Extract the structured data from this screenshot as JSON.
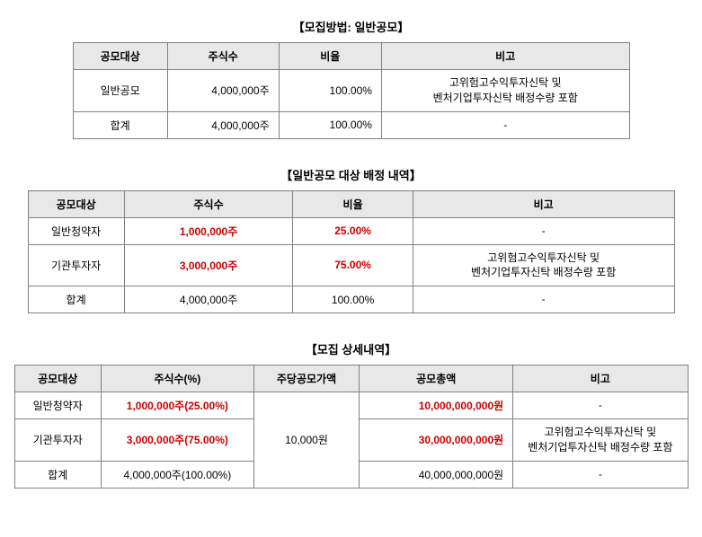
{
  "section1": {
    "title": "【모집방법: 일반공모】",
    "headers": [
      "공모대상",
      "주식수",
      "비율",
      "비고"
    ],
    "rows": [
      {
        "target": "일반공모",
        "shares": "4,000,000주",
        "ratio": "100.00%",
        "note": "고위험고수익투자신탁 및\n벤처기업투자신탁 배정수량 포함"
      },
      {
        "target": "합계",
        "shares": "4,000,000주",
        "ratio": "100.00%",
        "note": "-"
      }
    ]
  },
  "section2": {
    "title": "【일반공모 대상 배정 내역】",
    "headers": [
      "공모대상",
      "주식수",
      "비율",
      "비고"
    ],
    "rows": [
      {
        "target": "일반청약자",
        "shares": "1,000,000주",
        "ratio": "25.00%",
        "note": "-",
        "highlight": true
      },
      {
        "target": "기관투자자",
        "shares": "3,000,000주",
        "ratio": "75.00%",
        "note": "고위험고수익투자신탁 및\n벤처기업투자신탁 배정수량 포함",
        "highlight": true
      },
      {
        "target": "합계",
        "shares": "4,000,000주",
        "ratio": "100.00%",
        "note": "-",
        "highlight": false
      }
    ]
  },
  "section3": {
    "title": "【모집 상세내역】",
    "headers": [
      "공모대상",
      "주식수(%)",
      "주당공모가액",
      "공모총액",
      "비고"
    ],
    "price": "10,000원",
    "rows": [
      {
        "target": "일반청약자",
        "shares": "1,000,000주(25.00%)",
        "total": "10,000,000,000원",
        "note": "-",
        "highlight": true
      },
      {
        "target": "기관투자자",
        "shares": "3,000,000주(75.00%)",
        "total": "30,000,000,000원",
        "note": "고위험고수익투자신탁 및\n벤처기업투자신탁 배정수량 포함",
        "highlight": true
      },
      {
        "target": "합계",
        "shares": "4,000,000주(100.00%)",
        "total": "40,000,000,000원",
        "note": "-",
        "highlight": false
      }
    ]
  }
}
